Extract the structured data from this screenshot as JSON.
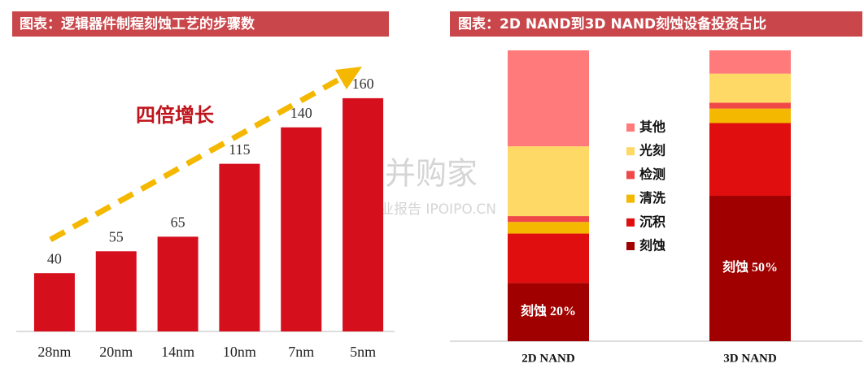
{
  "chart_data": [
    {
      "type": "bar",
      "title": "图表：逻辑器件制程刻蚀工艺的步骤数",
      "annotation": "四倍增长",
      "categories": [
        "28nm",
        "20nm",
        "14nm",
        "10nm",
        "7nm",
        "5nm"
      ],
      "values": [
        40,
        55,
        65,
        115,
        140,
        160
      ],
      "color": "#d50f1b",
      "ylim": [
        0,
        180
      ],
      "grid": false
    },
    {
      "type": "stacked_bar",
      "title": "图表：2D NAND到3D NAND刻蚀设备投资占比",
      "categories": [
        "2D NAND",
        "3D NAND"
      ],
      "ylim": [
        0,
        100
      ],
      "grid": false,
      "series": [
        {
          "name": "刻蚀",
          "color": "#a00000",
          "values": [
            20,
            50
          ],
          "value_labels": [
            "刻蚀 20%",
            "刻蚀 50%"
          ]
        },
        {
          "name": "沉积",
          "color": "#e00e0e",
          "values": [
            17,
            25
          ]
        },
        {
          "name": "清洗",
          "color": "#f5b800",
          "values": [
            4,
            5
          ]
        },
        {
          "name": "检测",
          "color": "#f04848",
          "values": [
            2,
            2
          ]
        },
        {
          "name": "光刻",
          "color": "#ffd966",
          "values": [
            24,
            10
          ]
        },
        {
          "name": "其他",
          "color": "#ff7b7b",
          "values": [
            33,
            8
          ]
        }
      ]
    }
  ],
  "watermark": {
    "logo": "并购家",
    "sub": "行业报告 IPOIPO.CN"
  }
}
